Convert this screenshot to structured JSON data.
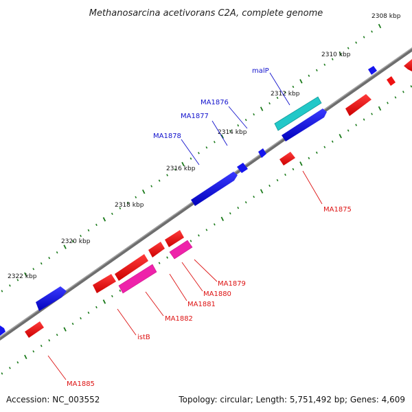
{
  "title": "Methanosarcina acetivorans C2A, complete genome",
  "footer": {
    "accession": "Accession: NC_003552",
    "summary": "Topology: circular; Length: 5,751,492 bp; Genes: 4,609"
  },
  "colors": {
    "backbone": "#777777",
    "ticks": "#1a7a1a",
    "forward_gene": "#1010dd",
    "reverse_gene": "#ee1111",
    "pink_gene": "#ee22aa",
    "cyan_gene": "#22cccc",
    "forward_label": "#1010cc",
    "reverse_label": "#dd1111"
  },
  "ticks": [
    {
      "label": "2308 kbp"
    },
    {
      "label": "2310 kbp"
    },
    {
      "label": "2312 kbp"
    },
    {
      "label": "2314 kbp"
    },
    {
      "label": "2316 kbp"
    },
    {
      "label": "2318 kbp"
    },
    {
      "label": "2320 kbp"
    },
    {
      "label": "2322 kbp"
    }
  ],
  "gene_labels": {
    "malP": "malP",
    "MA1876": "MA1876",
    "MA1877": "MA1877",
    "MA1878": "MA1878",
    "MA1875": "MA1875",
    "MA1879": "MA1879",
    "MA1880": "MA1880",
    "MA1881": "MA1881",
    "MA1882": "MA1882",
    "istB": "istB",
    "MA1885": "MA1885"
  }
}
